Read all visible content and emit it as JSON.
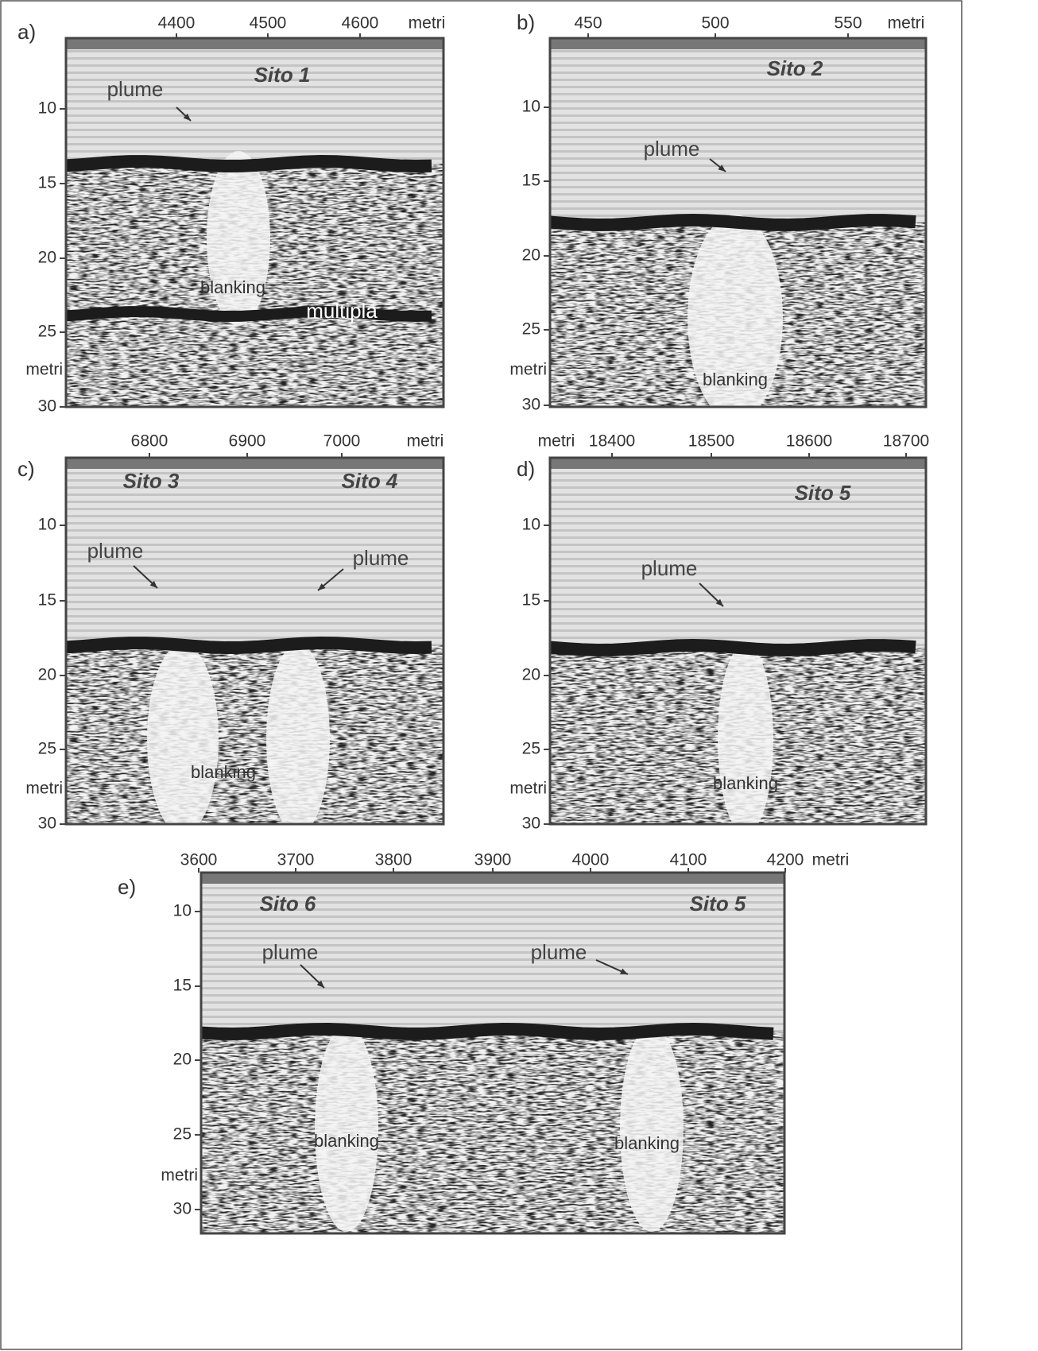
{
  "panels": [
    {
      "label": "a)",
      "x_ticks": [
        "4400",
        "4500",
        "4600"
      ],
      "x_unit": "metri",
      "y_ticks": [
        "10",
        "15",
        "20",
        "25",
        "30"
      ],
      "y_unit": "metri",
      "annotations": [
        "Sito 1",
        "plume",
        "blanking",
        "multipla"
      ]
    },
    {
      "label": "b)",
      "x_ticks": [
        "450",
        "500",
        "550"
      ],
      "x_unit": "metri",
      "y_ticks": [
        "10",
        "15",
        "20",
        "25",
        "30"
      ],
      "y_unit": "metri",
      "annotations": [
        "Sito 2",
        "plume",
        "blanking"
      ]
    },
    {
      "label": "c)",
      "x_ticks": [
        "6800",
        "6900",
        "7000"
      ],
      "x_unit": "metri",
      "y_ticks": [
        "10",
        "15",
        "20",
        "25",
        "30"
      ],
      "y_unit": "metri",
      "annotations": [
        "Sito 3",
        "Sito 4",
        "plume",
        "plume",
        "blanking"
      ]
    },
    {
      "label": "d)",
      "x_ticks": [
        "18400",
        "18500",
        "18600",
        "18700"
      ],
      "x_unit": "metri",
      "y_ticks": [
        "10",
        "15",
        "20",
        "25",
        "30"
      ],
      "y_unit": "metri",
      "annotations": [
        "Sito 5",
        "plume",
        "blanking"
      ]
    },
    {
      "label": "e)",
      "x_ticks": [
        "3600",
        "3700",
        "3800",
        "3900",
        "4000",
        "4100",
        "4200"
      ],
      "x_unit": "metri",
      "y_ticks": [
        "10",
        "15",
        "20",
        "25",
        "30"
      ],
      "y_unit": "metri",
      "annotations": [
        "Sito 6",
        "Sito 5",
        "plume",
        "plume",
        "blanking",
        "blanking"
      ]
    }
  ]
}
